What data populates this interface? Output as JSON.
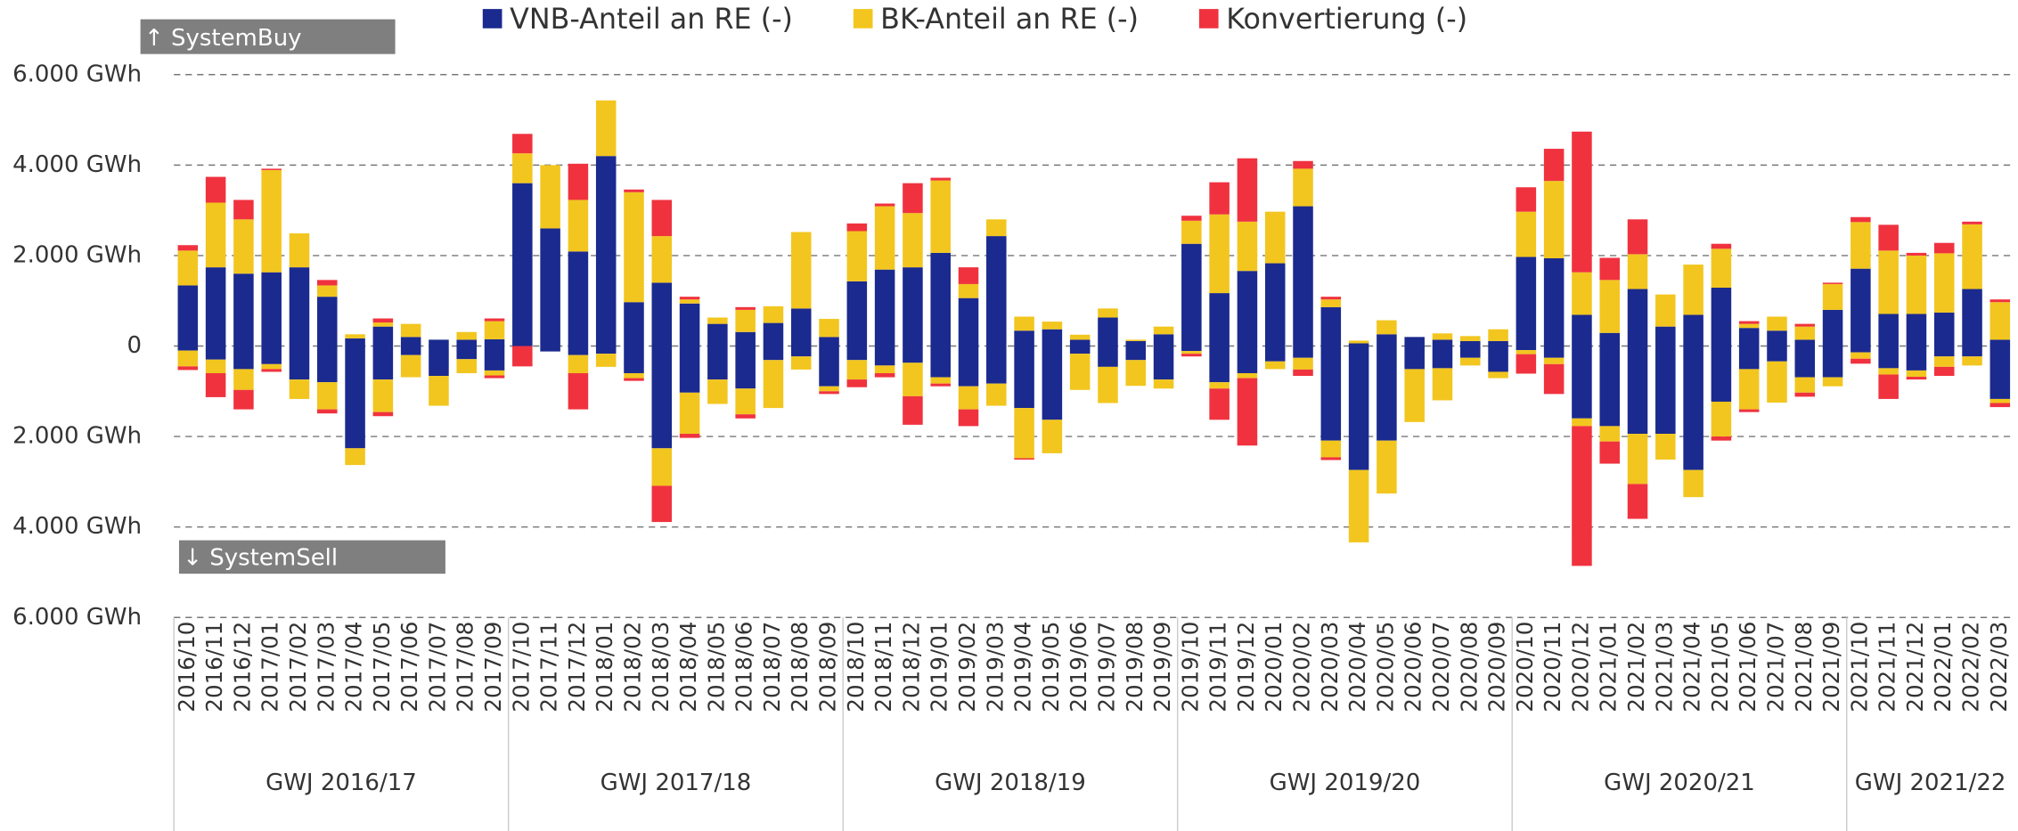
{
  "chart_data": {
    "type": "diverging-stacked-bar",
    "buy_label": "↑ SystemBuy",
    "sell_label": "↓ SystemSell",
    "ylim": [
      -6000,
      6000
    ],
    "yticks": [
      {
        "value": 6000,
        "label": "6.000 GWh"
      },
      {
        "value": 4000,
        "label": "4.000 GWh"
      },
      {
        "value": 2000,
        "label": "2.000 GWh"
      },
      0,
      {
        "value": -2000,
        "label": "2.000 GWh"
      },
      {
        "value": -4000,
        "label": "4.000 GWh"
      },
      {
        "value": -6000,
        "label": "6.000 GWh"
      }
    ],
    "grid": true,
    "legend": "top",
    "categories": [
      "2016/10",
      "2016/11",
      "2016/12",
      "2017/01",
      "2017/02",
      "2017/03",
      "2017/04",
      "2017/05",
      "2017/06",
      "2017/07",
      "2017/08",
      "2017/09",
      "2017/10",
      "2017/11",
      "2017/12",
      "2018/01",
      "2018/02",
      "2018/03",
      "2018/04",
      "2018/05",
      "2018/06",
      "2018/07",
      "2018/08",
      "2018/09",
      "2018/10",
      "2018/11",
      "2018/12",
      "2019/01",
      "2019/02",
      "2019/03",
      "2019/04",
      "2019/05",
      "2019/06",
      "2019/07",
      "2019/08",
      "2019/09",
      "2019/10",
      "2019/11",
      "2019/12",
      "2020/01",
      "2020/02",
      "2020/03",
      "2020/04",
      "2020/05",
      "2020/06",
      "2020/07",
      "2020/08",
      "2020/09",
      "2020/10",
      "2020/11",
      "2020/12",
      "2021/01",
      "2021/02",
      "2021/03",
      "2021/04",
      "2021/05",
      "2021/06",
      "2021/07",
      "2021/08",
      "2021/09",
      "2021/10",
      "2021/11",
      "2021/12",
      "2022/01",
      "2022/02",
      "2022/03"
    ],
    "groups": [
      "GWJ 2016/17",
      "GWJ 2017/18",
      "GWJ 2018/19",
      "GWJ 2019/20",
      "GWJ 2020/21",
      "GWJ 2021/22"
    ],
    "series": [
      {
        "name": "VNB-Anteil an RE (-)",
        "color": "#1b2a8e",
        "values": [
          1340,
          1740,
          1600,
          1630,
          1740,
          1090,
          170,
          430,
          200,
          140,
          140,
          150,
          3600,
          2600,
          2090,
          4200,
          970,
          1400,
          940,
          490,
          310,
          510,
          830,
          200,
          1430,
          1690,
          1740,
          2060,
          1060,
          2430,
          340,
          370,
          140,
          630,
          110,
          260,
          2260,
          1170,
          1660,
          1830,
          3090,
          860,
          60,
          260,
          200,
          140,
          110,
          110,
          1970,
          1940,
          690,
          290,
          1260,
          430,
          690,
          1290,
          400,
          340,
          140,
          800,
          1710,
          710,
          710,
          740,
          1260,
          140
        ],
        "sell_values": [
          -100,
          -300,
          -510,
          -400,
          -740,
          -800,
          -2260,
          -740,
          -200,
          -660,
          -290,
          -540,
          0,
          -120,
          -200,
          -170,
          -600,
          -2260,
          -1030,
          -740,
          -940,
          -310,
          -230,
          -890,
          -310,
          -430,
          -370,
          -690,
          -890,
          -830,
          -1370,
          -1630,
          -170,
          -460,
          -310,
          -740,
          -110,
          -800,
          -600,
          -340,
          -260,
          -2090,
          -2740,
          -2090,
          -510,
          -490,
          -260,
          -570,
          -90,
          -260,
          -1600,
          -1770,
          -1940,
          -1940,
          -2740,
          -1230,
          -510,
          -340,
          -690,
          -690,
          -140,
          -490,
          -540,
          -230,
          -230,
          -1170
        ]
      },
      {
        "name": "BK-Anteil an RE (-)",
        "color": "#f2c61f",
        "values": [
          770,
          1430,
          1200,
          2260,
          750,
          250,
          90,
          90,
          290,
          0,
          170,
          400,
          660,
          1400,
          1140,
          1230,
          2430,
          1030,
          90,
          140,
          490,
          370,
          1690,
          400,
          1110,
          1400,
          1200,
          1600,
          310,
          370,
          310,
          170,
          110,
          200,
          30,
          170,
          510,
          1740,
          1090,
          1140,
          830,
          170,
          60,
          310,
          0,
          140,
          110,
          260,
          1000,
          1710,
          940,
          1170,
          770,
          710,
          1110,
          860,
          90,
          310,
          290,
          570,
          1030,
          1400,
          1290,
          1310,
          1430,
          830
        ],
        "sell_values": [
          -350,
          -300,
          -460,
          -110,
          -430,
          -600,
          -370,
          -720,
          -490,
          -660,
          -310,
          -110,
          0,
          0,
          -400,
          -290,
          -110,
          -830,
          -910,
          -540,
          -570,
          -1060,
          -290,
          -110,
          -430,
          -170,
          -740,
          -140,
          -510,
          -490,
          -1110,
          -740,
          -800,
          -800,
          -570,
          -200,
          -60,
          -140,
          -110,
          -170,
          -260,
          -370,
          -1600,
          -1170,
          -1170,
          -710,
          -170,
          -140,
          -90,
          -140,
          -170,
          -340,
          -1110,
          -570,
          -600,
          -770,
          -890,
          -910,
          -340,
          -200,
          -140,
          -140,
          -140,
          -230,
          -200,
          -90
        ]
      },
      {
        "name": "Konvertierung (-)",
        "color": "#f0323f",
        "values": [
          120,
          570,
          430,
          30,
          0,
          120,
          0,
          90,
          0,
          0,
          0,
          60,
          430,
          0,
          800,
          0,
          60,
          800,
          60,
          0,
          60,
          0,
          0,
          0,
          170,
          60,
          660,
          60,
          370,
          0,
          0,
          0,
          0,
          0,
          0,
          0,
          110,
          710,
          1400,
          0,
          170,
          60,
          0,
          0,
          0,
          0,
          0,
          0,
          540,
          710,
          3110,
          490,
          770,
          0,
          0,
          110,
          60,
          0,
          60,
          30,
          110,
          570,
          60,
          230,
          60,
          60
        ],
        "sell_values": [
          -80,
          -530,
          -430,
          -60,
          0,
          -90,
          0,
          -90,
          0,
          0,
          0,
          -60,
          -450,
          0,
          -800,
          0,
          -60,
          -800,
          -90,
          0,
          -90,
          0,
          0,
          -60,
          -170,
          -90,
          -630,
          -60,
          -370,
          0,
          -30,
          0,
          0,
          0,
          0,
          0,
          -60,
          -690,
          -1490,
          0,
          -140,
          -60,
          0,
          0,
          0,
          0,
          0,
          0,
          -430,
          -660,
          -3090,
          -490,
          -770,
          0,
          0,
          -90,
          -60,
          0,
          -90,
          0,
          -110,
          -540,
          -60,
          -200,
          0,
          -90
        ]
      }
    ]
  }
}
